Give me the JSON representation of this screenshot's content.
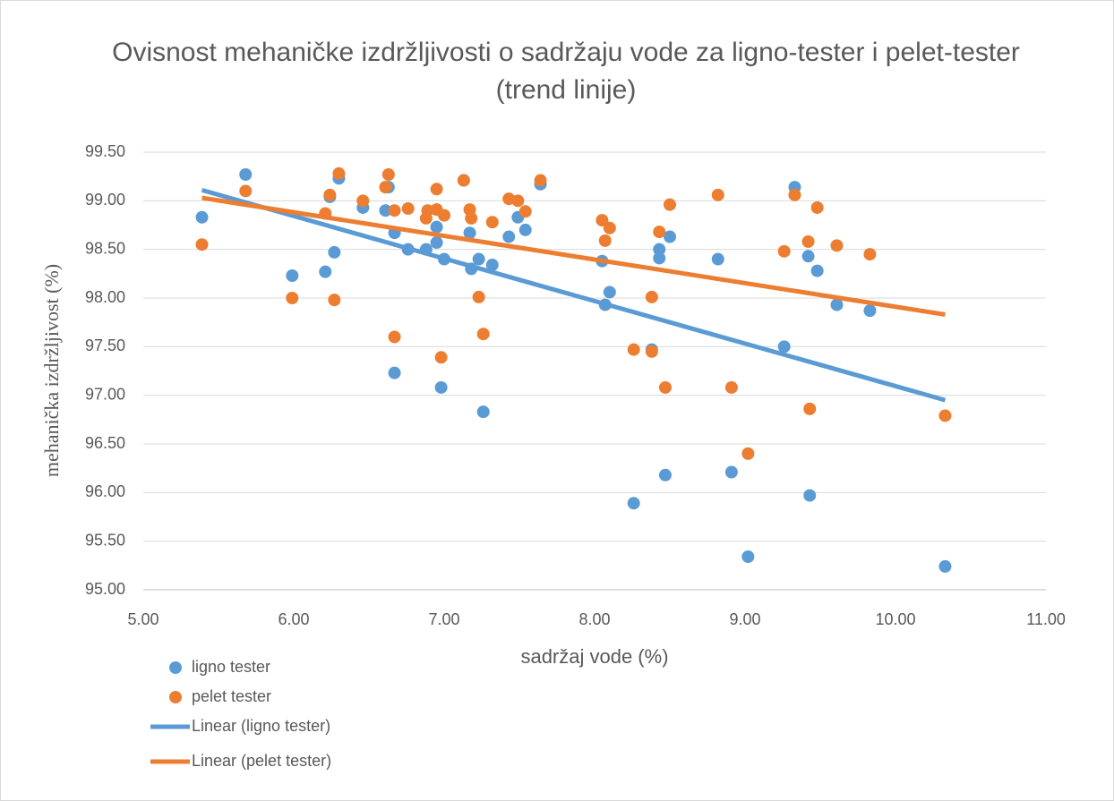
{
  "chart_data": {
    "type": "scatter",
    "title": "Ovisnost mehaničke izdržljivosti o sadržaju vode za ligno-tester i pelet-tester (trend linije)",
    "x_label": "sadržaj vode (%)",
    "y_label": "mehanička izdržljivost (%)",
    "xlim": [
      5,
      11
    ],
    "xticks": [
      {
        "value": 5,
        "label": "5.00"
      },
      {
        "value": 6,
        "label": "6.00"
      },
      {
        "value": 7,
        "label": "7.00"
      },
      {
        "value": 8,
        "label": "8.00"
      },
      {
        "value": 9,
        "label": "9.00"
      },
      {
        "value": 10,
        "label": "10.00"
      },
      {
        "value": 11,
        "label": "11.00"
      }
    ],
    "ylim": [
      95,
      99.5
    ],
    "yticks": [
      {
        "value": 95,
        "label": "95.00"
      },
      {
        "value": 95.5,
        "label": "95.50"
      },
      {
        "value": 96,
        "label": "96.00"
      },
      {
        "value": 96.5,
        "label": "96.50"
      },
      {
        "value": 97,
        "label": "97.00"
      },
      {
        "value": 97.5,
        "label": "97.50"
      },
      {
        "value": 98,
        "label": "98.00"
      },
      {
        "value": 98.5,
        "label": "98.50"
      },
      {
        "value": 99,
        "label": "99.00"
      },
      {
        "value": 99.5,
        "label": "99.50"
      }
    ],
    "grid": true,
    "legend": "bottom-left",
    "series": [
      {
        "name": "ligno tester",
        "type": "scatter",
        "color": "#5b9bd5",
        "x": [
          5.39,
          5.68,
          5.99,
          6.21,
          6.24,
          6.27,
          6.3,
          6.46,
          6.61,
          6.63,
          6.67,
          6.67,
          6.76,
          6.88,
          6.95,
          6.95,
          6.98,
          7.0,
          7.13,
          7.17,
          7.18,
          7.23,
          7.26,
          7.32,
          7.43,
          7.49,
          7.54,
          7.64,
          8.05,
          8.07,
          8.1,
          8.26,
          8.38,
          8.43,
          8.43,
          8.47,
          8.5,
          8.82,
          8.91,
          9.02,
          9.26,
          9.33,
          9.42,
          9.43,
          9.48,
          9.61,
          9.83,
          10.33
        ],
        "values": [
          98.83,
          99.27,
          98.23,
          98.27,
          99.04,
          98.47,
          99.23,
          98.93,
          98.9,
          99.14,
          98.67,
          97.23,
          98.5,
          98.5,
          98.73,
          98.57,
          97.08,
          98.4,
          99.21,
          98.67,
          98.3,
          98.4,
          96.83,
          98.34,
          98.63,
          98.83,
          98.7,
          99.17,
          98.38,
          97.93,
          98.06,
          95.89,
          97.47,
          98.41,
          98.5,
          96.18,
          98.63,
          98.4,
          96.21,
          95.34,
          97.5,
          99.14,
          98.43,
          95.97,
          98.28,
          97.93,
          97.87,
          95.24
        ]
      },
      {
        "name": "pelet tester",
        "type": "scatter",
        "color": "#ed7d31",
        "x": [
          5.39,
          5.68,
          5.99,
          6.21,
          6.24,
          6.27,
          6.3,
          6.46,
          6.61,
          6.63,
          6.67,
          6.67,
          6.76,
          6.88,
          6.89,
          6.95,
          6.95,
          6.98,
          7.0,
          7.13,
          7.17,
          7.18,
          7.23,
          7.26,
          7.32,
          7.43,
          7.49,
          7.54,
          7.64,
          8.05,
          8.07,
          8.1,
          8.26,
          8.38,
          8.38,
          8.43,
          8.47,
          8.5,
          8.82,
          8.91,
          9.02,
          9.26,
          9.33,
          9.42,
          9.43,
          9.48,
          9.61,
          9.83,
          10.33
        ],
        "values": [
          98.55,
          99.1,
          98.0,
          98.87,
          99.06,
          97.98,
          99.28,
          99.0,
          99.14,
          99.27,
          97.6,
          98.9,
          98.92,
          98.82,
          98.9,
          99.12,
          98.91,
          97.39,
          98.85,
          99.21,
          98.91,
          98.82,
          98.01,
          97.63,
          98.78,
          99.02,
          99.0,
          98.89,
          99.21,
          98.8,
          98.59,
          98.72,
          97.47,
          98.01,
          97.45,
          98.68,
          97.08,
          98.96,
          99.06,
          97.08,
          96.4,
          98.48,
          99.06,
          98.58,
          96.86,
          98.93,
          98.54,
          98.45,
          96.79
        ]
      },
      {
        "name": "Linear (ligno tester)",
        "type": "line",
        "color": "#5b9bd5",
        "x": [
          5.39,
          10.33
        ],
        "values": [
          99.11,
          96.95
        ]
      },
      {
        "name": "Linear (pelet tester)",
        "type": "line",
        "color": "#ed7d31",
        "x": [
          5.39,
          10.33
        ],
        "values": [
          99.03,
          97.83
        ]
      }
    ]
  }
}
